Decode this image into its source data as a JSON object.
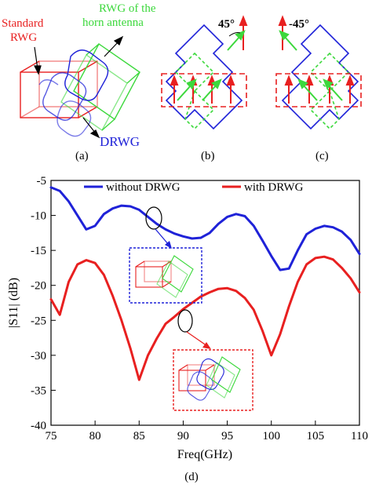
{
  "panel_a": {
    "label_standard_line1": "Standard",
    "label_standard_line2": "RWG",
    "label_horn_line1": "RWG of the",
    "label_horn_line2": "horn antenna",
    "label_drwg": "DRWG",
    "caption": "(a)"
  },
  "panel_b": {
    "angle": "45°",
    "caption": "(b)"
  },
  "panel_c": {
    "angle": "-45°",
    "caption": "(c)"
  },
  "panel_d": {
    "caption": "(d)"
  },
  "colors": {
    "red": "#e82020",
    "blue": "#1f22d8",
    "green": "#3cd83c",
    "black": "#000000"
  },
  "chart_data": {
    "type": "line",
    "xlabel": "Freq(GHz)",
    "ylabel": "|S11| (dB)",
    "xlim": [
      75,
      110
    ],
    "ylim": [
      -40,
      -5
    ],
    "xticks": [
      75,
      80,
      85,
      90,
      95,
      100,
      105,
      110
    ],
    "yticks": [
      -5,
      -10,
      -15,
      -20,
      -25,
      -30,
      -35,
      -40
    ],
    "legend_position": "top",
    "series": [
      {
        "name": "without DRWG",
        "color": "#1f22d8",
        "x": [
          75,
          76,
          77,
          78,
          79,
          80,
          81,
          82,
          83,
          84,
          85,
          86,
          87,
          88,
          89,
          90,
          91,
          92,
          93,
          94,
          95,
          96,
          97,
          98,
          99,
          100,
          101,
          102,
          103,
          104,
          105,
          106,
          107,
          108,
          109,
          110
        ],
        "y": [
          -6,
          -6.5,
          -8,
          -10,
          -12,
          -11.5,
          -9.8,
          -9,
          -8.6,
          -8.7,
          -9.2,
          -10.2,
          -11.2,
          -12,
          -12.6,
          -13,
          -13.3,
          -13.2,
          -12.5,
          -11.2,
          -10.2,
          -9.8,
          -10.1,
          -11.5,
          -13.6,
          -15.8,
          -17.8,
          -17.6,
          -15,
          -12.7,
          -11.9,
          -11.5,
          -11.7,
          -12.3,
          -13.5,
          -15.5
        ]
      },
      {
        "name": "with DRWG",
        "color": "#e82020",
        "x": [
          75,
          76,
          77,
          78,
          79,
          80,
          81,
          82,
          83,
          84,
          85,
          86,
          87,
          88,
          89,
          90,
          91,
          92,
          93,
          94,
          95,
          96,
          97,
          98,
          99,
          100,
          101,
          102,
          103,
          104,
          105,
          106,
          107,
          108,
          109,
          110
        ],
        "y": [
          -22,
          -24.2,
          -19.5,
          -17,
          -16.4,
          -16.8,
          -18.5,
          -21.5,
          -25,
          -29,
          -33.5,
          -30,
          -27.6,
          -25.5,
          -24.5,
          -23.4,
          -22.5,
          -21.6,
          -21,
          -20.5,
          -20.4,
          -20.8,
          -21.8,
          -23.5,
          -26.5,
          -30,
          -27,
          -23,
          -19.5,
          -17,
          -16.1,
          -15.9,
          -16.3,
          -17.5,
          -19,
          -21
        ]
      }
    ]
  }
}
